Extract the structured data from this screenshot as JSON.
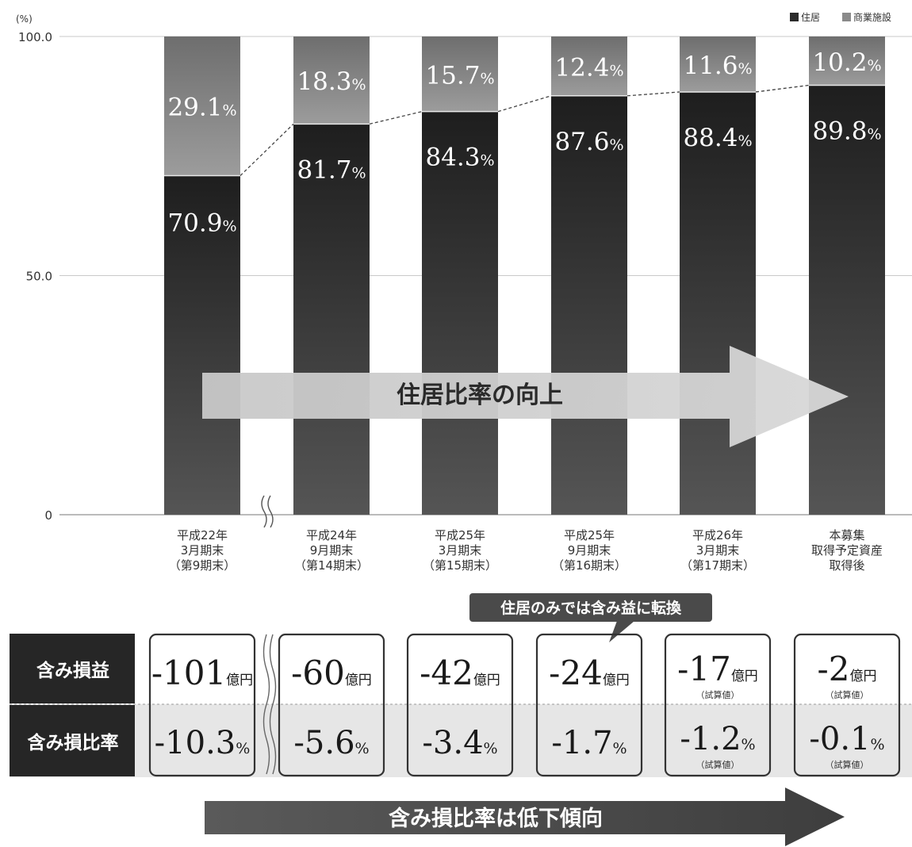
{
  "chart_data": {
    "type": "bar",
    "stacked": true,
    "unit_label": "(%)",
    "ylim": [
      0,
      100
    ],
    "yticks": [
      0,
      50.0,
      100.0
    ],
    "ytick_labels": [
      "0",
      "50.0",
      "100.0"
    ],
    "grid": true,
    "legend_position": "top-right",
    "categories": [
      [
        "平成22年",
        "3月期末",
        "（第9期末）"
      ],
      [
        "平成24年",
        "9月期末",
        "（第14期末）"
      ],
      [
        "平成25年",
        "3月期末",
        "（第15期末）"
      ],
      [
        "平成25年",
        "9月期末",
        "（第16期末）"
      ],
      [
        "平成26年",
        "3月期末",
        "（第17期末）"
      ],
      [
        "本募集",
        "取得予定資産",
        "取得後"
      ]
    ],
    "series": [
      {
        "name": "住居",
        "color": "#2b2b2b",
        "values": [
          70.9,
          81.7,
          84.3,
          87.6,
          88.4,
          89.8
        ]
      },
      {
        "name": "商業施設",
        "color": "#8a8a8a",
        "values": [
          29.1,
          18.3,
          15.7,
          12.4,
          11.6,
          10.2
        ]
      }
    ],
    "value_suffix": "%",
    "trend_arrow_label": "住居比率の向上"
  },
  "table": {
    "row_labels": [
      "含み損益",
      "含み損比率"
    ],
    "gain_unit": "億円",
    "ratio_unit": "%",
    "estimate_note": "（試算値）",
    "gains": [
      {
        "value": "-101",
        "estimate": false
      },
      {
        "value": "-60",
        "estimate": false
      },
      {
        "value": "-42",
        "estimate": false
      },
      {
        "value": "-24",
        "estimate": false
      },
      {
        "value": "-17",
        "estimate": true
      },
      {
        "value": "-2",
        "estimate": true
      }
    ],
    "ratios": [
      {
        "value": "-10.3",
        "estimate": false
      },
      {
        "value": "-5.6",
        "estimate": false
      },
      {
        "value": "-3.4",
        "estimate": false
      },
      {
        "value": "-1.7",
        "estimate": false
      },
      {
        "value": "-1.2",
        "estimate": true
      },
      {
        "value": "-0.1",
        "estimate": true
      }
    ],
    "callout": "住居のみでは含み益に転換",
    "bottom_arrow_label": "含み損比率は低下傾向"
  }
}
